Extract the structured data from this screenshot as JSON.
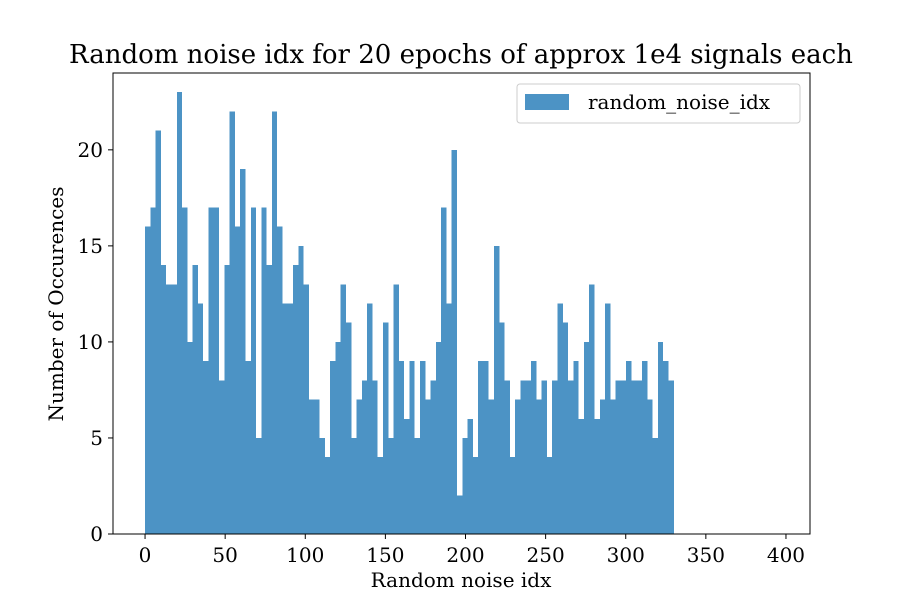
{
  "chart_data": {
    "type": "bar",
    "title": "Random noise idx for 20 epochs of approx 1e4 signals each",
    "xlabel": "Random noise idx",
    "ylabel": "Number of Occurences",
    "xlim": [
      -20,
      415
    ],
    "ylim": [
      0,
      24
    ],
    "bin_width": 3.3,
    "bins_start": 0,
    "x_ticks": [
      0,
      50,
      100,
      150,
      200,
      250,
      300,
      350,
      400
    ],
    "y_ticks": [
      0,
      5,
      10,
      15,
      20
    ],
    "x_tick_labels": [
      "0",
      "50",
      "100",
      "150",
      "200",
      "250",
      "300",
      "350",
      "400"
    ],
    "y_tick_labels": [
      "0",
      "5",
      "10",
      "15",
      "20"
    ],
    "color": "#4c93c5",
    "legend_position": "top-right",
    "series": [
      {
        "name": "random_noise_idx",
        "values": [
          16,
          17,
          21,
          14,
          13,
          13,
          23,
          17,
          10,
          14,
          12,
          9,
          17,
          17,
          8,
          14,
          22,
          16,
          19,
          9,
          17,
          5,
          17,
          14,
          22,
          16,
          12,
          12,
          14,
          15,
          13,
          7,
          7,
          5,
          4,
          9,
          10,
          13,
          11,
          5,
          7,
          8,
          12,
          8,
          4,
          11,
          5,
          13,
          9,
          6,
          9,
          5,
          9,
          7,
          8,
          10,
          17,
          12,
          20,
          2,
          5,
          6,
          4,
          9,
          9,
          7,
          15,
          11,
          8,
          4,
          7,
          8,
          8,
          9,
          7,
          8,
          4,
          8,
          12,
          11,
          8,
          9,
          6,
          10,
          13,
          6,
          7,
          12,
          7,
          8,
          8,
          9,
          8,
          8,
          9,
          7,
          5,
          10,
          9,
          8
        ]
      }
    ]
  }
}
